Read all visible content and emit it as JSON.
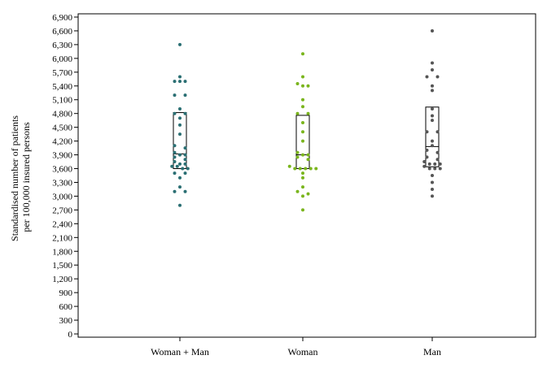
{
  "chart_data": {
    "type": "scatter",
    "subtype": "dot-strip-with-box",
    "ylabel_lines": [
      "Standardised number of patients",
      "per 100,000 insured persons"
    ],
    "ylim": [
      0,
      6900
    ],
    "yticks": [
      0,
      300,
      600,
      900,
      1200,
      1500,
      1800,
      2100,
      2400,
      2700,
      3000,
      3300,
      3600,
      3900,
      4200,
      4500,
      4800,
      5100,
      5400,
      5700,
      6000,
      6300,
      6600,
      6900
    ],
    "ytick_labels": [
      "0",
      "300",
      "600",
      "900",
      "1,200",
      "1,500",
      "1,800",
      "2,100",
      "2,400",
      "2,700",
      "3,000",
      "3,300",
      "3,600",
      "3,900",
      "4,200",
      "4,500",
      "4,800",
      "5,100",
      "5,400",
      "5,700",
      "6,000",
      "6,300",
      "6,600",
      "6,900"
    ],
    "grid": false,
    "categories": [
      "Woman + Man",
      "Woman",
      "Man"
    ],
    "series": [
      {
        "category": "Woman + Man",
        "color": "#2a6f73",
        "box": {
          "q1": 3600,
          "median": 3920,
          "q3": 4820
        },
        "points": [
          6300,
          5600,
          5500,
          5500,
          5500,
          5200,
          5200,
          4900,
          4800,
          4800,
          4700,
          4550,
          4350,
          4100,
          4050,
          3950,
          3900,
          3900,
          3850,
          3800,
          3750,
          3700,
          3700,
          3650,
          3650,
          3600,
          3600,
          3500,
          3500,
          3400,
          3200,
          3100,
          3100,
          2800
        ]
      },
      {
        "category": "Woman",
        "color": "#7ab51d",
        "box": {
          "q1": 3600,
          "median": 3900,
          "q3": 4760
        },
        "points": [
          6100,
          5600,
          5450,
          5400,
          5400,
          5100,
          4950,
          4800,
          4800,
          4600,
          4400,
          4200,
          3950,
          3900,
          3900,
          3850,
          3800,
          3650,
          3600,
          3600,
          3600,
          3600,
          3600,
          3500,
          3400,
          3200,
          3100,
          3050,
          3000,
          2700
        ]
      },
      {
        "category": "Man",
        "color": "#555555",
        "box": {
          "q1": 3640,
          "median": 4080,
          "q3": 4940
        },
        "points": [
          6600,
          5900,
          5750,
          5600,
          5600,
          5400,
          5300,
          4900,
          4750,
          4650,
          4400,
          4400,
          4200,
          4100,
          4000,
          3950,
          3850,
          3800,
          3750,
          3700,
          3700,
          3700,
          3650,
          3600,
          3600,
          3600,
          3450,
          3300,
          3150,
          3000
        ]
      }
    ]
  }
}
